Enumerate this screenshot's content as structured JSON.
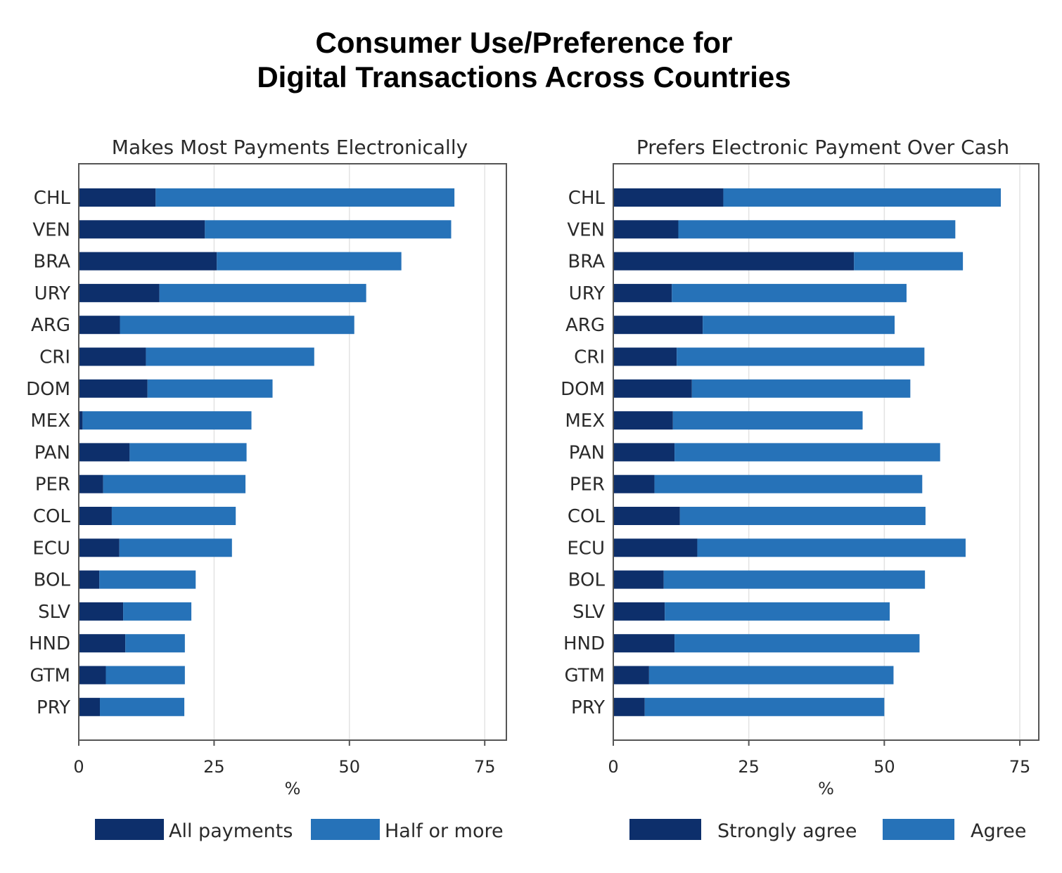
{
  "title": {
    "line1": "Consumer Use/Preference for",
    "line2": "Digital Transactions Across Countries"
  },
  "colors": {
    "dark": "#0d2f6b",
    "light": "#2672b8",
    "frame": "#555555",
    "grid": "#e3e3e3"
  },
  "chart_data": [
    {
      "type": "bar",
      "orientation": "horizontal",
      "stacked": true,
      "title": "Makes Most Payments Electronically",
      "xlabel": "%",
      "ylabel": "",
      "xlim": [
        0,
        79
      ],
      "xticks": [
        0,
        25,
        50,
        75
      ],
      "grid": true,
      "legend_position": "bottom",
      "categories": [
        "CHL",
        "VEN",
        "BRA",
        "URY",
        "ARG",
        "CRI",
        "DOM",
        "MEX",
        "PAN",
        "PER",
        "COL",
        "ECU",
        "BOL",
        "SLV",
        "HND",
        "GTM",
        "PRY"
      ],
      "series": [
        {
          "name": "All payments",
          "color": "#0d2f6b",
          "values": [
            14.2,
            23.3,
            25.5,
            14.9,
            7.6,
            12.4,
            12.7,
            0.7,
            9.4,
            4.5,
            6.1,
            7.5,
            3.8,
            8.2,
            8.6,
            5.0,
            3.9
          ]
        },
        {
          "name": "Half or more",
          "color": "#2672b8",
          "values": [
            55.2,
            45.5,
            34.1,
            38.2,
            43.3,
            31.1,
            23.1,
            31.2,
            21.6,
            26.3,
            22.9,
            20.8,
            17.8,
            12.6,
            11.0,
            14.6,
            15.6
          ]
        }
      ]
    },
    {
      "type": "bar",
      "orientation": "horizontal",
      "stacked": true,
      "title": "Prefers Electronic Payment Over Cash",
      "xlabel": "%",
      "ylabel": "",
      "xlim": [
        0,
        78.5
      ],
      "xticks": [
        0,
        25,
        50,
        75
      ],
      "grid": true,
      "legend_position": "bottom",
      "categories": [
        "CHL",
        "VEN",
        "BRA",
        "URY",
        "ARG",
        "CRI",
        "DOM",
        "MEX",
        "PAN",
        "PER",
        "COL",
        "ECU",
        "BOL",
        "SLV",
        "HND",
        "GTM",
        "PRY"
      ],
      "series": [
        {
          "name": "Strongly agree",
          "color": "#0d2f6b",
          "values": [
            20.3,
            12.0,
            44.4,
            10.8,
            16.5,
            11.7,
            14.5,
            11.0,
            11.3,
            7.6,
            12.3,
            15.5,
            9.3,
            9.5,
            11.3,
            6.6,
            5.8
          ]
        },
        {
          "name": "Agree",
          "color": "#2672b8",
          "values": [
            51.2,
            51.1,
            20.1,
            43.3,
            35.4,
            45.7,
            40.3,
            35.0,
            49.0,
            49.4,
            45.3,
            49.5,
            48.2,
            41.5,
            45.2,
            45.1,
            44.2
          ]
        }
      ]
    }
  ]
}
